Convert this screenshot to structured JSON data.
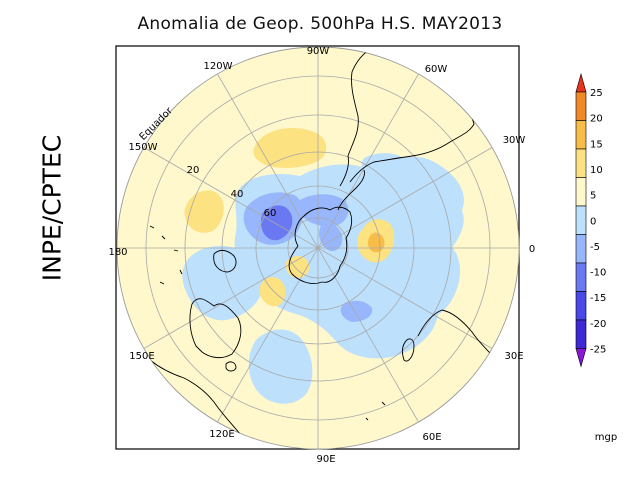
{
  "title": "Anomalia de Geop. 500hPa H.S. MAY2013",
  "watermark": "INPE/CPTEC",
  "equator_label": "Equador",
  "longitude_labels": [
    "90W",
    "60W",
    "30W",
    "0",
    "30E",
    "60E",
    "90E",
    "120E",
    "150E",
    "180",
    "150W",
    "120W"
  ],
  "latitude_labels": [
    "20",
    "40",
    "60"
  ],
  "colorbar": {
    "unit": "mgp",
    "ticks": [
      "25",
      "20",
      "15",
      "10",
      "5",
      "0",
      "-5",
      "-10",
      "-15",
      "-20",
      "-25"
    ],
    "colors": [
      "#e8341c",
      "#f08a28",
      "#f8bc48",
      "#fde282",
      "#fef8cc",
      "#bde0fd",
      "#98b6fb",
      "#6a78f2",
      "#4a48e8",
      "#3d2ad6",
      "#8a17d8"
    ]
  },
  "map_legend_levels": {
    "pale_yellow": "0 to 5",
    "yellow": "5 to 10",
    "light_blue": "-5 to 0",
    "blue": "-10 to -5",
    "dark_blue": "-15 to -10"
  }
}
